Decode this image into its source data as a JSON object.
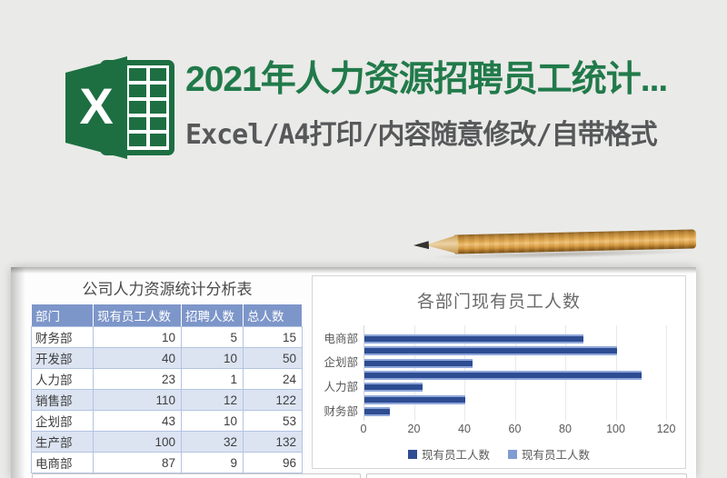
{
  "colors": {
    "background": "#eaeae8",
    "excel_green": "#1d6f42",
    "title_green": "#217a4a",
    "subtitle_gray": "#57585a",
    "table_header_bg": "#7d96c9",
    "table_band_bg": "#dce4f2",
    "table_border": "#b3c3e2",
    "bar_dark": "#2d4c92",
    "bar_light": "#8fa7da",
    "axis_text": "#595959"
  },
  "header": {
    "title": "2021年人力资源招聘员工统计...",
    "subtitle": "Excel/A4打印/内容随意修改/自带格式",
    "logo_letter": "X"
  },
  "sheet": {
    "table": {
      "title": "公司人力资源统计分析表",
      "headers": [
        "部门",
        "现有员工人数",
        "招聘人数",
        "总人数"
      ],
      "rows": [
        [
          "财务部",
          "10",
          "5",
          "15"
        ],
        [
          "开发部",
          "40",
          "10",
          "50"
        ],
        [
          "人力部",
          "23",
          "1",
          "24"
        ],
        [
          "销售部",
          "110",
          "12",
          "122"
        ],
        [
          "企划部",
          "43",
          "10",
          "53"
        ],
        [
          "生产部",
          "100",
          "32",
          "132"
        ],
        [
          "电商部",
          "87",
          "9",
          "96"
        ]
      ]
    }
  },
  "chart_data": {
    "type": "bar",
    "orientation": "horizontal",
    "title": "各部门现有员工人数",
    "categories": [
      "电商部",
      "生产部",
      "企划部",
      "销售部",
      "人力部",
      "开发部",
      "财务部"
    ],
    "visible_category_labels": [
      "电商部",
      "企划部",
      "人力部",
      "财务部"
    ],
    "values": [
      87,
      100,
      43,
      110,
      23,
      40,
      10
    ],
    "xlabel": "",
    "ylabel": "",
    "xlim": [
      0,
      120
    ],
    "x_ticks": [
      0,
      20,
      40,
      60,
      80,
      100,
      120
    ],
    "grid": true,
    "legend_position": "bottom",
    "legend": [
      {
        "label": "现有员工人数",
        "color": "#2d4c92"
      },
      {
        "label": "现有员工人数",
        "color": "#7f9cd3"
      }
    ]
  }
}
